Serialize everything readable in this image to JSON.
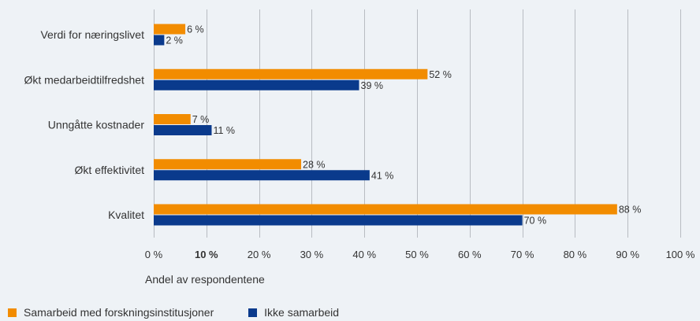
{
  "chart_data": {
    "type": "bar",
    "orientation": "horizontal",
    "categories": [
      "Verdi for næringslivet",
      "Økt medarbeidtilfredshet",
      "Unngåtte kostnader",
      "Økt effektivitet",
      "Kvalitet"
    ],
    "series": [
      {
        "name": "Samarbeid med forskningsinstitusjoner",
        "color": "#f28c00",
        "values": [
          6,
          52,
          7,
          28,
          88
        ],
        "labels": [
          "6 %",
          "52 %",
          "7 %",
          "28 %",
          "88 %"
        ]
      },
      {
        "name": "Ikke samarbeid",
        "color": "#0a3a8c",
        "values": [
          2,
          39,
          11,
          41,
          70
        ],
        "labels": [
          "2 %",
          "39 %",
          "11 %",
          "41 %",
          "70 %"
        ]
      }
    ],
    "xlim": [
      0,
      100
    ],
    "xticks": [
      0,
      10,
      20,
      30,
      40,
      50,
      60,
      70,
      80,
      90,
      100
    ],
    "xtick_labels": [
      "0 %",
      "10 %",
      "20 %",
      "30 %",
      "40 %",
      "50 %",
      "60 %",
      "70 %",
      "80 %",
      "90 %",
      "100 %"
    ],
    "xtick_bold": "10 %",
    "xlabel": "Andel av respondentene",
    "ylabel": "",
    "title": "",
    "grid": true,
    "legend_position": "bottom-left"
  }
}
